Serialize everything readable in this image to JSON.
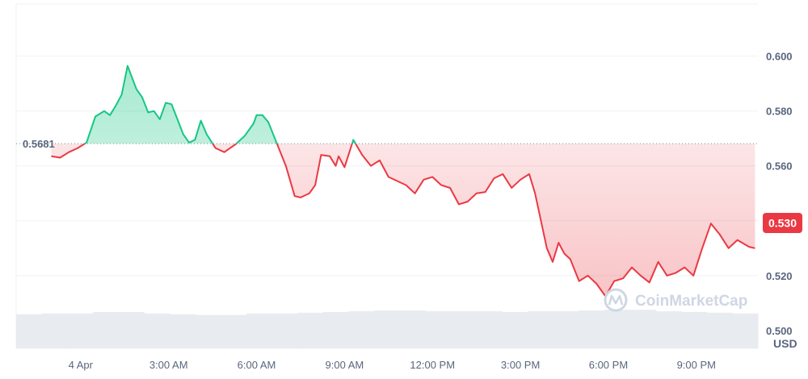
{
  "chart_data": {
    "type": "area",
    "currency_label": "USD",
    "baseline": {
      "value": 0.5681,
      "label": "0.5681"
    },
    "current_price": {
      "value": 0.53,
      "label": "0.530"
    },
    "ylim": [
      0.4935,
      0.619
    ],
    "y_ticks": [
      {
        "value": 0.6,
        "label": "0.600"
      },
      {
        "value": 0.58,
        "label": "0.580"
      },
      {
        "value": 0.56,
        "label": "0.560"
      },
      {
        "value": 0.54,
        "label": "0.540"
      },
      {
        "value": 0.52,
        "label": "0.520"
      },
      {
        "value": 0.5,
        "label": "0.500"
      }
    ],
    "x_unit": "hours since 4 Apr 00:00",
    "xlim": [
      -2.2,
      23.1
    ],
    "x_ticks": [
      {
        "value": 0,
        "label": "4 Apr"
      },
      {
        "value": 3,
        "label": "3:00 AM"
      },
      {
        "value": 6,
        "label": "6:00 AM"
      },
      {
        "value": 9,
        "label": "9:00 AM"
      },
      {
        "value": 12,
        "label": "12:00 PM"
      },
      {
        "value": 15,
        "label": "3:00 PM"
      },
      {
        "value": 18,
        "label": "6:00 PM"
      },
      {
        "value": 21,
        "label": "9:00 PM"
      }
    ],
    "grid": true,
    "watermark": "CoinMarketCap",
    "series": [
      {
        "x": [
          -1.0,
          -0.7,
          -0.4,
          -0.1,
          0.2,
          0.5,
          0.8,
          1.0,
          1.2,
          1.4,
          1.6,
          1.9,
          2.1,
          2.3,
          2.5,
          2.7,
          2.9,
          3.1,
          3.3,
          3.5,
          3.7,
          3.9,
          4.1,
          4.3,
          4.6,
          4.9,
          5.1,
          5.3,
          5.6,
          5.9,
          6.0,
          6.2,
          6.4,
          6.7,
          7.0,
          7.3,
          7.5,
          7.8,
          8.0,
          8.2,
          8.5,
          8.7,
          8.8,
          9.0,
          9.3,
          9.6,
          9.9,
          10.2,
          10.5,
          10.8,
          11.1,
          11.4,
          11.7,
          12.0,
          12.3,
          12.6,
          12.9,
          13.2,
          13.5,
          13.8,
          14.1,
          14.4,
          14.7,
          15.0,
          15.3,
          15.5,
          15.7,
          15.9,
          16.1,
          16.3,
          16.5,
          16.7,
          17.0,
          17.3,
          17.6,
          17.9,
          18.2,
          18.5,
          18.8,
          19.1,
          19.4,
          19.7,
          20.0,
          20.3,
          20.6,
          20.9,
          21.2,
          21.5,
          21.8,
          22.1,
          22.4,
          22.8,
          23.0
        ],
        "y": [
          0.5635,
          0.563,
          0.565,
          0.5665,
          0.5685,
          0.578,
          0.58,
          0.5785,
          0.582,
          0.586,
          0.5965,
          0.588,
          0.585,
          0.5795,
          0.58,
          0.577,
          0.583,
          0.5825,
          0.577,
          0.5715,
          0.5685,
          0.5695,
          0.5765,
          0.5715,
          0.5665,
          0.565,
          0.5665,
          0.568,
          0.571,
          0.5755,
          0.5785,
          0.5785,
          0.576,
          0.568,
          0.56,
          0.549,
          0.5485,
          0.55,
          0.553,
          0.564,
          0.5635,
          0.56,
          0.5635,
          0.5595,
          0.5695,
          0.564,
          0.56,
          0.562,
          0.556,
          0.5545,
          0.553,
          0.55,
          0.555,
          0.556,
          0.553,
          0.552,
          0.546,
          0.547,
          0.55,
          0.5505,
          0.5555,
          0.557,
          0.552,
          0.555,
          0.557,
          0.55,
          0.54,
          0.53,
          0.525,
          0.532,
          0.528,
          0.526,
          0.518,
          0.52,
          0.517,
          0.5125,
          0.518,
          0.519,
          0.523,
          0.52,
          0.5175,
          0.525,
          0.52,
          0.521,
          0.523,
          0.52,
          0.53,
          0.539,
          0.535,
          0.53,
          0.533,
          0.5305,
          0.53
        ]
      }
    ],
    "volume": {
      "values": [
        0.46,
        0.47,
        0.47,
        0.49,
        0.49,
        0.47,
        0.46,
        0.45,
        0.45,
        0.47,
        0.47,
        0.48,
        0.49,
        0.5,
        0.51,
        0.51,
        0.5,
        0.5,
        0.5,
        0.49,
        0.5,
        0.5,
        0.51,
        0.52,
        0.52,
        0.5,
        0.49,
        0.48,
        0.47
      ]
    },
    "colors": {
      "up": "#16c784",
      "down": "#ea3943",
      "grid": "#eff2f5",
      "axis_text": "#58667e",
      "volume": "#e8ebef",
      "baseline": "#808a9d",
      "watermark": "#cfd6e4"
    }
  }
}
